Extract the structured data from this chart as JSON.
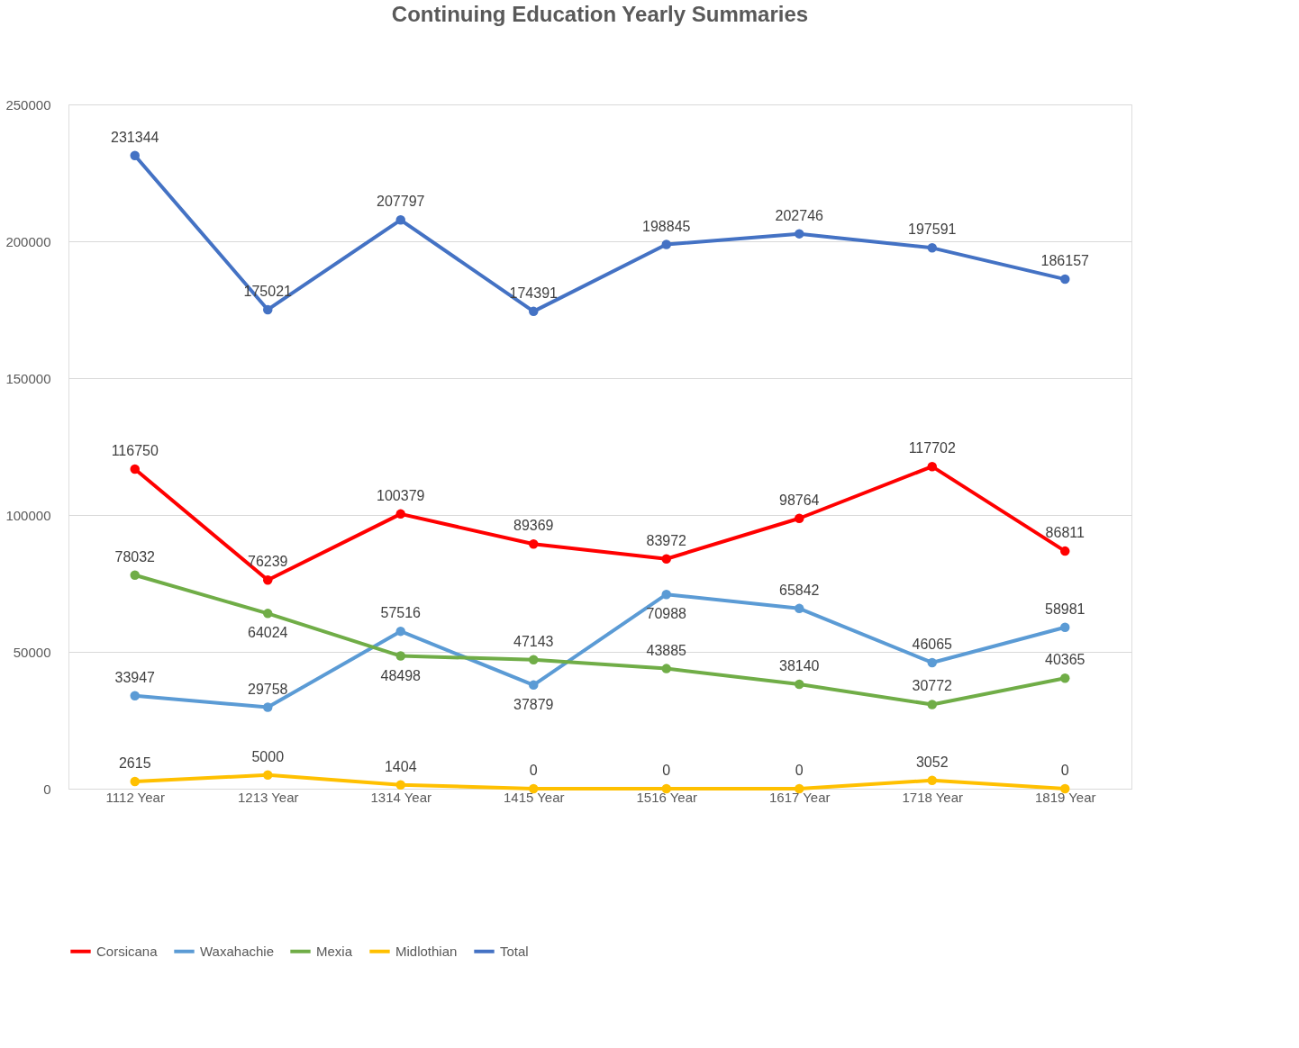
{
  "chart_data": {
    "type": "line",
    "title": "Continuing Education Yearly Summaries",
    "categories": [
      "1112 Year",
      "1213 Year",
      "1314 Year",
      "1415 Year",
      "1516 Year",
      "1617 Year",
      "1718 Year",
      "1819 Year"
    ],
    "series": [
      {
        "name": "Corsicana",
        "color": "#ff0000",
        "values": [
          116750,
          76239,
          100379,
          89369,
          83972,
          98764,
          117702,
          86811
        ]
      },
      {
        "name": "Waxahachie",
        "color": "#5b9bd5",
        "values": [
          33947,
          29758,
          57516,
          37879,
          70988,
          65842,
          46065,
          58981
        ]
      },
      {
        "name": "Mexia",
        "color": "#70ad47",
        "values": [
          78032,
          64024,
          48498,
          47143,
          43885,
          38140,
          30772,
          40365
        ]
      },
      {
        "name": "Midlothian",
        "color": "#ffc000",
        "values": [
          2615,
          5000,
          1404,
          0,
          0,
          0,
          3052,
          0
        ]
      },
      {
        "name": "Total",
        "color": "#4472c4",
        "values": [
          231344,
          175021,
          207797,
          174391,
          198845,
          202746,
          197591,
          186157
        ]
      }
    ],
    "ylim": [
      0,
      250000
    ],
    "yticks": [
      0,
      50000,
      100000,
      150000,
      200000,
      250000
    ],
    "grid": "y",
    "legend": "bottom",
    "marker": "circle",
    "line_style": "solid",
    "data_labels": true
  }
}
